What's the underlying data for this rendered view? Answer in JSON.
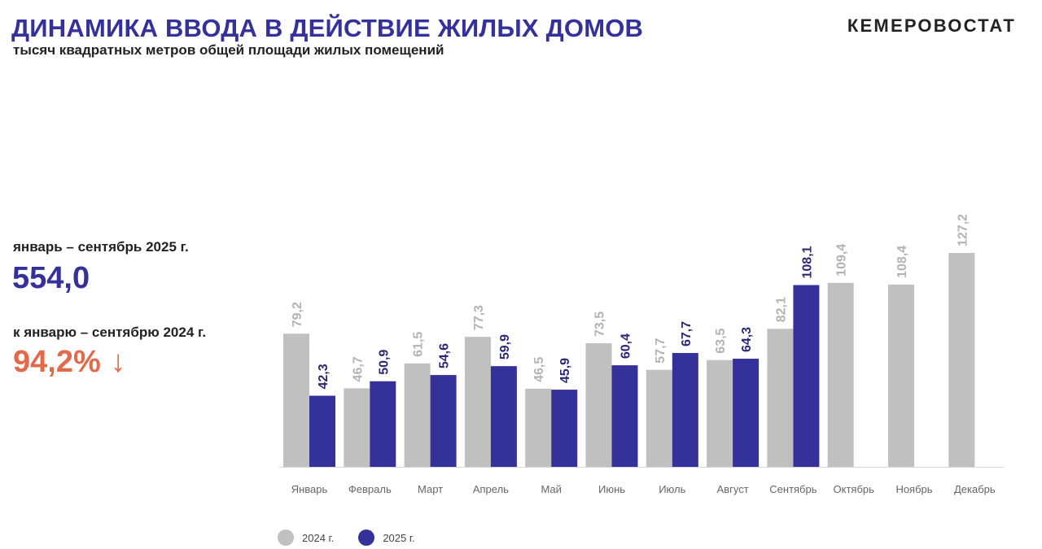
{
  "header": {
    "title": "ДИНАМИКА ВВОДА В ДЕЙСТВИЕ ЖИЛЫХ ДОМОВ",
    "subtitle": "тысяч квадратных метров общей площади жилых помещений",
    "brand": "КЕМЕРОВОСТАТ"
  },
  "summary": {
    "period_label": "январь – сентябрь 2025 г.",
    "total_value": "554,0",
    "compare_label": "к январю – сентябрю 2024 г.",
    "percent_value": "94,2%",
    "trend_arrow": "↓"
  },
  "colors": {
    "series_2024": "#c0c0c0",
    "series_2025": "#35319a",
    "label_2024": "#b3b3b3",
    "label_2025": "#2a2877",
    "accent_orange": "#e2694a"
  },
  "chart_data": {
    "type": "bar",
    "title": "ДИНАМИКА ВВОДА В ДЕЙСТВИЕ ЖИЛЫХ ДОМОВ",
    "ylabel": "тысяч квадратных метров общей площади жилых помещений",
    "categories": [
      "Январь",
      "Февраль",
      "Март",
      "Апрель",
      "Май",
      "Июнь",
      "Июль",
      "Август",
      "Сентябрь",
      "Октябрь",
      "Ноябрь",
      "Декабрь"
    ],
    "series": [
      {
        "name": "2024 г.",
        "values": [
          79.2,
          46.7,
          61.5,
          77.3,
          46.5,
          73.5,
          57.7,
          63.5,
          82.1,
          109.4,
          108.4,
          127.2
        ],
        "labels": [
          "79,2",
          "46,7",
          "61,5",
          "77,3",
          "46,5",
          "73,5",
          "57,7",
          "63,5",
          "82,1",
          "109,4",
          "108,4",
          "127,2"
        ]
      },
      {
        "name": "2025 г.",
        "values": [
          42.3,
          50.9,
          54.6,
          59.9,
          45.9,
          60.4,
          67.7,
          64.3,
          108.1,
          null,
          null,
          null
        ],
        "labels": [
          "42,3",
          "50,9",
          "54,6",
          "59,9",
          "45,9",
          "60,4",
          "67,7",
          "64,3",
          "108,1",
          null,
          null,
          null
        ]
      }
    ],
    "ylim": [
      0,
      135
    ],
    "grid": false,
    "legend": "bottom-left"
  }
}
